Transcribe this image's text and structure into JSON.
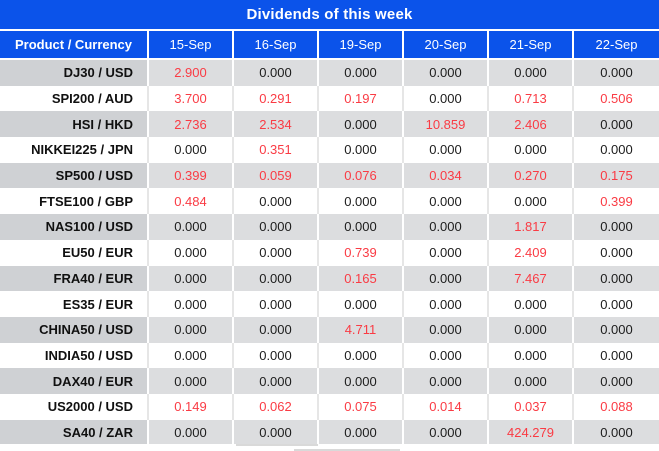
{
  "title": "Dividends of this week",
  "columns": [
    "Product / Currency",
    "15-Sep",
    "16-Sep",
    "19-Sep",
    "20-Sep",
    "21-Sep",
    "22-Sep"
  ],
  "rows": [
    {
      "product": "DJ30 / USD",
      "values": [
        "2.900",
        "0.000",
        "0.000",
        "0.000",
        "0.000",
        "0.000"
      ]
    },
    {
      "product": "SPI200 / AUD",
      "values": [
        "3.700",
        "0.291",
        "0.197",
        "0.000",
        "0.713",
        "0.506"
      ]
    },
    {
      "product": "HSI / HKD",
      "values": [
        "2.736",
        "2.534",
        "0.000",
        "10.859",
        "2.406",
        "0.000"
      ]
    },
    {
      "product": "NIKKEI225 / JPN",
      "values": [
        "0.000",
        "0.351",
        "0.000",
        "0.000",
        "0.000",
        "0.000"
      ]
    },
    {
      "product": "SP500 / USD",
      "values": [
        "0.399",
        "0.059",
        "0.076",
        "0.034",
        "0.270",
        "0.175"
      ]
    },
    {
      "product": "FTSE100 / GBP",
      "values": [
        "0.484",
        "0.000",
        "0.000",
        "0.000",
        "0.000",
        "0.399"
      ]
    },
    {
      "product": "NAS100 / USD",
      "values": [
        "0.000",
        "0.000",
        "0.000",
        "0.000",
        "1.817",
        "0.000"
      ]
    },
    {
      "product": "EU50 / EUR",
      "values": [
        "0.000",
        "0.000",
        "0.739",
        "0.000",
        "2.409",
        "0.000"
      ]
    },
    {
      "product": "FRA40 / EUR",
      "values": [
        "0.000",
        "0.000",
        "0.165",
        "0.000",
        "7.467",
        "0.000"
      ]
    },
    {
      "product": "ES35 / EUR",
      "values": [
        "0.000",
        "0.000",
        "0.000",
        "0.000",
        "0.000",
        "0.000"
      ]
    },
    {
      "product": "CHINA50 / USD",
      "values": [
        "0.000",
        "0.000",
        "4.711",
        "0.000",
        "0.000",
        "0.000"
      ]
    },
    {
      "product": "INDIA50 / USD",
      "values": [
        "0.000",
        "0.000",
        "0.000",
        "0.000",
        "0.000",
        "0.000"
      ]
    },
    {
      "product": "DAX40 / EUR",
      "values": [
        "0.000",
        "0.000",
        "0.000",
        "0.000",
        "0.000",
        "0.000"
      ]
    },
    {
      "product": "US2000 / USD",
      "values": [
        "0.149",
        "0.062",
        "0.075",
        "0.014",
        "0.037",
        "0.088"
      ]
    },
    {
      "product": "SA40 / ZAR",
      "values": [
        "0.000",
        "0.000",
        "0.000",
        "0.000",
        "424.279",
        "0.000"
      ]
    }
  ],
  "colors": {
    "header_blue": "#0b53ea",
    "nonzero_red": "#fa3b44",
    "zero_black": "#1c1c1c",
    "gray_row_label_bg": "#cfd1d4",
    "gray_row_cell_bg": "#dcdddf"
  }
}
